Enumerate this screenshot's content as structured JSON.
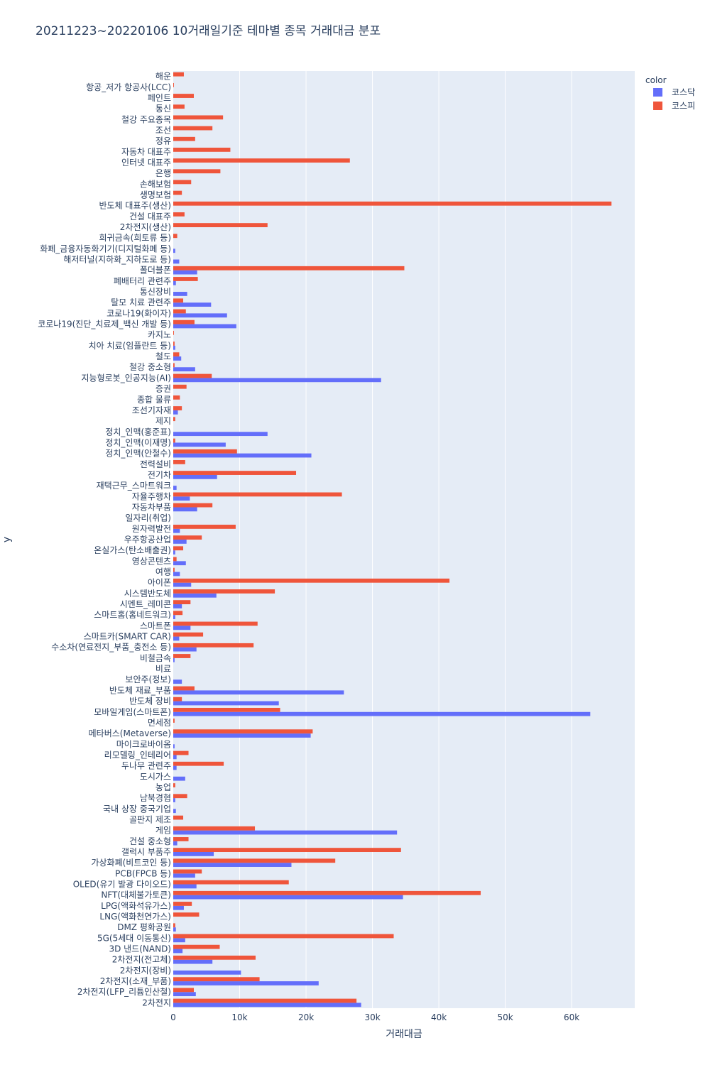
{
  "chart_data": {
    "type": "bar",
    "orientation": "horizontal",
    "barmode": "group",
    "title": "20211223~20220106 10거래일기준 테마별 종목 거래대금 분포",
    "xlabel": "거래대금",
    "ylabel": "y",
    "xlim": [
      0,
      69500
    ],
    "xticks": [
      0,
      10000,
      20000,
      30000,
      40000,
      50000,
      60000
    ],
    "xtick_labels": [
      "0",
      "10k",
      "20k",
      "30k",
      "40k",
      "50k",
      "60k"
    ],
    "legend": {
      "title": "color",
      "position": "top-right"
    },
    "categories": [
      "2차전지",
      "2차전지(LFP_리튬인산철)",
      "2차전지(소재_부품)",
      "2차전지(장비)",
      "2차전지(전고체)",
      "3D 낸드(NAND)",
      "5G(5세대 이동통신)",
      "DMZ 평화공원",
      "LNG(액화천연가스)",
      "LPG(액화석유가스)",
      "NFT(대체불가토큰)",
      "OLED(유기 발광 다이오드)",
      "PCB(FPCB 등)",
      "가상화폐(비트코인 등)",
      "갤럭시 부품주",
      "건설 중소형",
      "게임",
      "골판지 제조",
      "국내 상장 중국기업",
      "남북경협",
      "농업",
      "도시가스",
      "두나무 관련주",
      "리모델링_인테리어",
      "마이크로바이옴",
      "메타버스(Metaverse)",
      "면세점",
      "모바일게임(스마트폰)",
      "반도체 장비",
      "반도체 재료_부품",
      "보안주(정보)",
      "비료",
      "비철금속",
      "수소차(연료전지_부품_충전소 등)",
      "스마트카(SMART CAR)",
      "스마트폰",
      "스마트홈(홈네트워크)",
      "시멘트_레미콘",
      "시스템반도체",
      "아이폰",
      "여행",
      "영상콘텐츠",
      "온실가스(탄소배출권)",
      "우주항공산업",
      "원자력발전",
      "일자리(취업)",
      "자동차부품",
      "자율주행차",
      "재택근무_스마트워크",
      "전기차",
      "전력설비",
      "정치_인맥(안철수)",
      "정치_인맥(이재명)",
      "정치_인맥(홍준표)",
      "제지",
      "조선기자재",
      "종합 물류",
      "증권",
      "지능형로봇_인공지능(AI)",
      "철강 중소형",
      "철도",
      "치아 치료(임플란트 등)",
      "카지노",
      "코로나19(진단_치료제_백신 개발 등)",
      "코로나19(화이자)",
      "탈모 치료 관련주",
      "통신장비",
      "폐배터리 관련주",
      "폴더블폰",
      "해저터널(지하화_지하도로 등)",
      "화폐_금융자동화기기(디지털화폐 등)",
      "희귀금속(희토류 등)",
      "2차전지(생산)",
      "건설 대표주",
      "반도체 대표주(생산)",
      "생명보험",
      "손해보험",
      "은행",
      "인터넷 대표주",
      "자동차 대표주",
      "정유",
      "조선",
      "철강 주요종목",
      "통신",
      "페인트",
      "항공_저가 항공사(LCC)",
      "해운"
    ],
    "series": [
      {
        "name": "코스닥",
        "color": "#636efa",
        "values": [
          28300,
          3400,
          21900,
          10200,
          5900,
          1400,
          1800,
          400,
          0,
          1600,
          34600,
          3500,
          3300,
          17800,
          6100,
          600,
          33700,
          0,
          400,
          300,
          0,
          1800,
          500,
          500,
          200,
          20700,
          0,
          62800,
          15900,
          25700,
          1300,
          0,
          200,
          3500,
          900,
          2600,
          300,
          1300,
          6500,
          2700,
          1000,
          1900,
          300,
          2000,
          1000,
          0,
          3600,
          2500,
          500,
          6600,
          0,
          20800,
          7900,
          14200,
          0,
          700,
          0,
          0,
          31300,
          3300,
          1200,
          300,
          0,
          9500,
          8100,
          5700,
          2100,
          400,
          3600,
          900,
          300,
          0,
          0,
          0,
          0,
          0,
          0,
          0,
          0,
          0,
          0,
          0,
          0,
          0,
          0,
          0,
          0
        ]
      },
      {
        "name": "코스피",
        "color": "#ef553b",
        "values": [
          27600,
          3100,
          13000,
          0,
          12400,
          7000,
          33200,
          300,
          3900,
          2800,
          46300,
          17400,
          4300,
          24400,
          34300,
          2300,
          12300,
          1500,
          0,
          2100,
          300,
          0,
          7600,
          2300,
          0,
          21000,
          200,
          16100,
          1300,
          3200,
          0,
          0,
          2600,
          12100,
          4500,
          12700,
          1400,
          2600,
          15300,
          41600,
          200,
          500,
          1500,
          4300,
          9400,
          0,
          5900,
          25400,
          0,
          18500,
          1800,
          9600,
          300,
          0,
          300,
          1300,
          1000,
          2000,
          5800,
          200,
          900,
          200,
          100,
          3200,
          1900,
          1500,
          0,
          3700,
          34800,
          0,
          0,
          600,
          14200,
          1700,
          66000,
          1300,
          2700,
          7100,
          26600,
          8600,
          3300,
          5900,
          7500,
          1700,
          3100,
          100,
          1600
        ]
      }
    ]
  }
}
